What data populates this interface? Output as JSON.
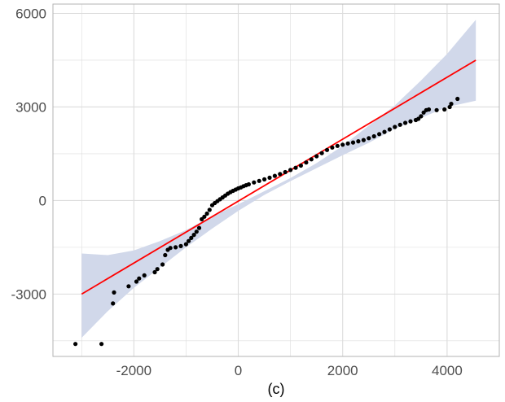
{
  "chart_data": {
    "type": "scatter",
    "title": "",
    "xlabel": "(c)",
    "ylabel": "",
    "xlim": [
      -3550,
      5000
    ],
    "ylim": [
      -5000,
      6300
    ],
    "grid": true,
    "xticks": [
      -2000,
      0,
      2000,
      4000
    ],
    "yticks": [
      -3000,
      0,
      3000,
      6000
    ],
    "xtick_labels": [
      "-2000",
      "0",
      "2000",
      "4000"
    ],
    "ytick_labels": [
      "-3000",
      "0",
      "3000",
      "6000"
    ],
    "points": [
      [
        -3120,
        -4600
      ],
      [
        -2620,
        -4600
      ],
      [
        -2400,
        -3300
      ],
      [
        -2380,
        -2950
      ],
      [
        -2100,
        -2750
      ],
      [
        -1950,
        -2600
      ],
      [
        -1900,
        -2500
      ],
      [
        -1800,
        -2400
      ],
      [
        -1600,
        -2300
      ],
      [
        -1550,
        -2200
      ],
      [
        -1450,
        -2050
      ],
      [
        -1400,
        -1750
      ],
      [
        -1350,
        -1580
      ],
      [
        -1300,
        -1520
      ],
      [
        -1200,
        -1500
      ],
      [
        -1100,
        -1460
      ],
      [
        -1000,
        -1400
      ],
      [
        -950,
        -1300
      ],
      [
        -900,
        -1200
      ],
      [
        -850,
        -1100
      ],
      [
        -800,
        -1000
      ],
      [
        -750,
        -880
      ],
      [
        -700,
        -600
      ],
      [
        -650,
        -520
      ],
      [
        -600,
        -420
      ],
      [
        -550,
        -300
      ],
      [
        -500,
        -150
      ],
      [
        -450,
        -80
      ],
      [
        -400,
        -20
      ],
      [
        -350,
        40
      ],
      [
        -300,
        100
      ],
      [
        -250,
        160
      ],
      [
        -200,
        220
      ],
      [
        -150,
        270
      ],
      [
        -100,
        310
      ],
      [
        -50,
        350
      ],
      [
        0,
        390
      ],
      [
        50,
        420
      ],
      [
        100,
        460
      ],
      [
        150,
        490
      ],
      [
        200,
        520
      ],
      [
        300,
        580
      ],
      [
        400,
        630
      ],
      [
        500,
        680
      ],
      [
        600,
        730
      ],
      [
        700,
        790
      ],
      [
        800,
        850
      ],
      [
        900,
        910
      ],
      [
        1000,
        980
      ],
      [
        1100,
        1050
      ],
      [
        1200,
        1120
      ],
      [
        1300,
        1220
      ],
      [
        1400,
        1320
      ],
      [
        1500,
        1420
      ],
      [
        1600,
        1520
      ],
      [
        1700,
        1620
      ],
      [
        1800,
        1700
      ],
      [
        1900,
        1750
      ],
      [
        2000,
        1790
      ],
      [
        2100,
        1830
      ],
      [
        2200,
        1860
      ],
      [
        2300,
        1900
      ],
      [
        2400,
        1940
      ],
      [
        2500,
        2000
      ],
      [
        2600,
        2060
      ],
      [
        2700,
        2130
      ],
      [
        2800,
        2200
      ],
      [
        2900,
        2280
      ],
      [
        3000,
        2360
      ],
      [
        3100,
        2430
      ],
      [
        3200,
        2490
      ],
      [
        3300,
        2540
      ],
      [
        3400,
        2580
      ],
      [
        3450,
        2620
      ],
      [
        3500,
        2700
      ],
      [
        3550,
        2820
      ],
      [
        3600,
        2900
      ],
      [
        3650,
        2920
      ],
      [
        3800,
        2900
      ],
      [
        3950,
        2920
      ],
      [
        4050,
        3000
      ],
      [
        4080,
        3100
      ],
      [
        4200,
        3260
      ]
    ],
    "fit_line": {
      "x": [
        -3000,
        4550
      ],
      "y": [
        -3000,
        4500
      ],
      "color": "#ff0000"
    },
    "confidence_band": {
      "x": [
        -3000,
        -2500,
        -2000,
        -1500,
        -1000,
        -500,
        0,
        500,
        1000,
        1500,
        2000,
        2500,
        3000,
        3500,
        4000,
        4550
      ],
      "upper": [
        -1700,
        -1750,
        -1600,
        -1300,
        -950,
        -500,
        -120,
        300,
        720,
        1200,
        1750,
        2400,
        3050,
        3850,
        4700,
        5800
      ],
      "lower": [
        -4400,
        -3550,
        -2800,
        -2150,
        -1500,
        -900,
        -330,
        180,
        620,
        1040,
        1450,
        1850,
        2300,
        2650,
        3000,
        3200
      ],
      "color": "#d1d8ea"
    },
    "point_color": "#000000",
    "gridline_color": "#dcdcdc"
  }
}
